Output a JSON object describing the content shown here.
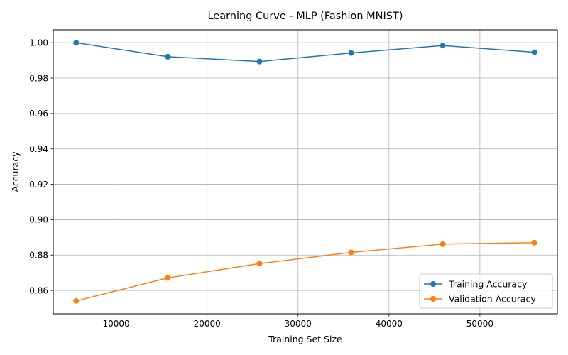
{
  "chart_data": {
    "type": "line",
    "title": "Learning Curve - MLP (Fashion MNIST)",
    "xlabel": "Training Set Size",
    "ylabel": "Accuracy",
    "x": [
      5600,
      15680,
      25760,
      35840,
      45920,
      56000
    ],
    "series": [
      {
        "name": "Training Accuracy",
        "color": "#1f77b4",
        "marker": "circle",
        "values": [
          1.0,
          0.9921,
          0.9894,
          0.9942,
          0.9984,
          0.9946
        ]
      },
      {
        "name": "Validation Accuracy",
        "color": "#ff7f0e",
        "marker": "circle",
        "values": [
          0.8541,
          0.8671,
          0.8752,
          0.8815,
          0.8862,
          0.887
        ]
      }
    ],
    "xlim": [
      3080,
      58520
    ],
    "ylim": [
      0.8468,
      1.0073
    ],
    "xticks": [
      10000,
      20000,
      30000,
      40000,
      50000
    ],
    "xtick_labels": [
      "10000",
      "20000",
      "30000",
      "40000",
      "50000"
    ],
    "yticks": [
      0.86,
      0.88,
      0.9,
      0.92,
      0.94,
      0.96,
      0.98,
      1.0
    ],
    "ytick_labels": [
      "0.86",
      "0.88",
      "0.90",
      "0.92",
      "0.94",
      "0.96",
      "0.98",
      "1.00"
    ],
    "grid": true,
    "legend_position": "bottom-right"
  }
}
